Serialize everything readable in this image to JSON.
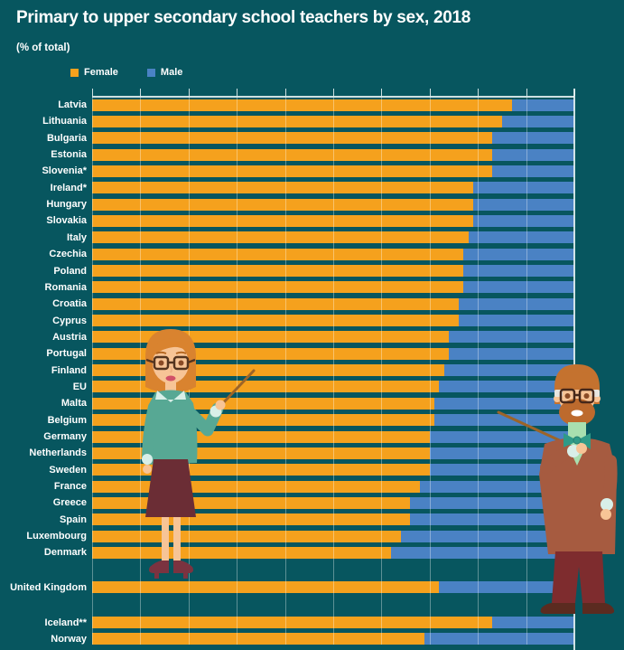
{
  "header": {
    "title": "Primary to upper secondary school teachers by sex, 2018",
    "subtitle": "(% of total)"
  },
  "legend": [
    {
      "label": "Female",
      "color": "#F5A11D"
    },
    {
      "label": "Male",
      "color": "#4A82C4"
    }
  ],
  "colors": {
    "background": "#07565F",
    "female": "#F5A11D",
    "male": "#4A82C4",
    "text": "#FFFFFF",
    "gridline": "rgba(255,255,255,0.35)",
    "axis_line": "rgba(240,248,248,0.85)"
  },
  "chart_data": {
    "type": "bar",
    "orientation": "horizontal",
    "stacked": true,
    "unit": "% of total",
    "xlim": [
      0,
      100
    ],
    "gridline_step": 10,
    "grid": true,
    "legend_position": "top-left",
    "series_names": [
      "Female",
      "Male"
    ],
    "groups": [
      {
        "name": "eu-countries",
        "rows": [
          {
            "country": "Latvia",
            "female": 87,
            "male": 13
          },
          {
            "country": "Lithuania",
            "female": 85,
            "male": 15
          },
          {
            "country": "Bulgaria",
            "female": 83,
            "male": 17
          },
          {
            "country": "Estonia",
            "female": 83,
            "male": 17
          },
          {
            "country": "Slovenia*",
            "female": 83,
            "male": 17
          },
          {
            "country": "Ireland*",
            "female": 79,
            "male": 21
          },
          {
            "country": "Hungary",
            "female": 79,
            "male": 21
          },
          {
            "country": "Slovakia",
            "female": 79,
            "male": 21
          },
          {
            "country": "Italy",
            "female": 78,
            "male": 22
          },
          {
            "country": "Czechia",
            "female": 77,
            "male": 23
          },
          {
            "country": "Poland",
            "female": 77,
            "male": 23
          },
          {
            "country": "Romania",
            "female": 77,
            "male": 23
          },
          {
            "country": "Croatia",
            "female": 76,
            "male": 24
          },
          {
            "country": "Cyprus",
            "female": 76,
            "male": 24
          },
          {
            "country": "Austria",
            "female": 74,
            "male": 26
          },
          {
            "country": "Portugal",
            "female": 74,
            "male": 26
          },
          {
            "country": "Finland",
            "female": 73,
            "male": 27
          },
          {
            "country": "EU",
            "female": 72,
            "male": 28
          },
          {
            "country": "Malta",
            "female": 71,
            "male": 29
          },
          {
            "country": "Belgium",
            "female": 71,
            "male": 29
          },
          {
            "country": "Germany",
            "female": 70,
            "male": 30
          },
          {
            "country": "Netherlands",
            "female": 70,
            "male": 30
          },
          {
            "country": "Sweden",
            "female": 70,
            "male": 30
          },
          {
            "country": "France",
            "female": 68,
            "male": 32
          },
          {
            "country": "Greece",
            "female": 66,
            "male": 34
          },
          {
            "country": "Spain",
            "female": 66,
            "male": 34
          },
          {
            "country": "Luxembourg",
            "female": 64,
            "male": 36
          },
          {
            "country": "Denmark",
            "female": 62,
            "male": 38
          }
        ]
      },
      {
        "name": "united-kingdom",
        "rows": [
          {
            "country": "United Kingdom",
            "female": 72,
            "male": 28
          }
        ]
      },
      {
        "name": "efta-countries",
        "rows": [
          {
            "country": "Iceland**",
            "female": 83,
            "male": 17
          },
          {
            "country": "Norway",
            "female": 69,
            "male": 31
          }
        ]
      }
    ]
  }
}
